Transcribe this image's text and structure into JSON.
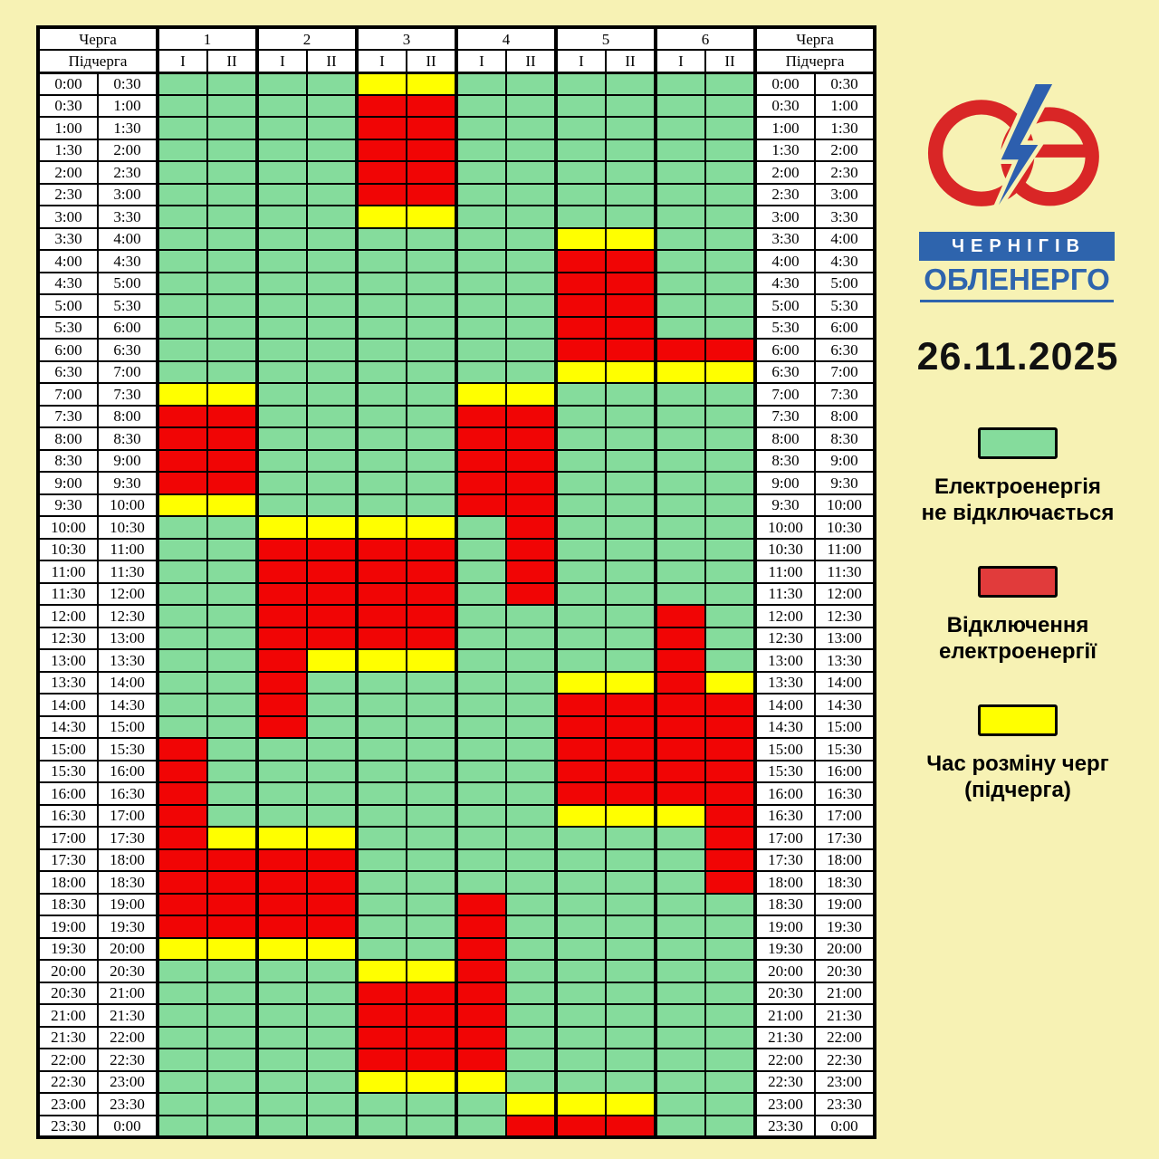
{
  "date": "26.11.2025",
  "logo": {
    "city": "ЧЕРНІГІВ",
    "company": "ОБЛЕНЕРГО",
    "ring_color": "#D92626",
    "bolt_color": "#2D5FAE"
  },
  "legend": [
    {
      "key": "G",
      "color": "#85DC9C",
      "lines": [
        "Електроенергія",
        "не відключається"
      ]
    },
    {
      "key": "R",
      "color": "#E13B3B",
      "lines": [
        "Відключення",
        "електроенергії"
      ]
    },
    {
      "key": "Y",
      "color": "#FFFF00",
      "lines": [
        "Час розміну черг",
        "(підчерга)"
      ]
    }
  ],
  "chart_data": {
    "type": "heatmap",
    "header": {
      "queue_label": "Черга",
      "subqueue_label": "Підчерга",
      "queues": [
        "1",
        "2",
        "3",
        "4",
        "5",
        "6"
      ],
      "subqueues": [
        "I",
        "II"
      ]
    },
    "cell_colors": {
      "G": "#85DC9C",
      "R": "#F10505",
      "Y": "#FFFF00"
    },
    "cell_meanings": {
      "G": "Електроенергія не відключається",
      "R": "Відключення електроенергії",
      "Y": "Час розміну черг (підчерга)"
    },
    "time_slots": [
      [
        "0:00",
        "0:30"
      ],
      [
        "0:30",
        "1:00"
      ],
      [
        "1:00",
        "1:30"
      ],
      [
        "1:30",
        "2:00"
      ],
      [
        "2:00",
        "2:30"
      ],
      [
        "2:30",
        "3:00"
      ],
      [
        "3:00",
        "3:30"
      ],
      [
        "3:30",
        "4:00"
      ],
      [
        "4:00",
        "4:30"
      ],
      [
        "4:30",
        "5:00"
      ],
      [
        "5:00",
        "5:30"
      ],
      [
        "5:30",
        "6:00"
      ],
      [
        "6:00",
        "6:30"
      ],
      [
        "6:30",
        "7:00"
      ],
      [
        "7:00",
        "7:30"
      ],
      [
        "7:30",
        "8:00"
      ],
      [
        "8:00",
        "8:30"
      ],
      [
        "8:30",
        "9:00"
      ],
      [
        "9:00",
        "9:30"
      ],
      [
        "9:30",
        "10:00"
      ],
      [
        "10:00",
        "10:30"
      ],
      [
        "10:30",
        "11:00"
      ],
      [
        "11:00",
        "11:30"
      ],
      [
        "11:30",
        "12:00"
      ],
      [
        "12:00",
        "12:30"
      ],
      [
        "12:30",
        "13:00"
      ],
      [
        "13:00",
        "13:30"
      ],
      [
        "13:30",
        "14:00"
      ],
      [
        "14:00",
        "14:30"
      ],
      [
        "14:30",
        "15:00"
      ],
      [
        "15:00",
        "15:30"
      ],
      [
        "15:30",
        "16:00"
      ],
      [
        "16:00",
        "16:30"
      ],
      [
        "16:30",
        "17:00"
      ],
      [
        "17:00",
        "17:30"
      ],
      [
        "17:30",
        "18:00"
      ],
      [
        "18:00",
        "18:30"
      ],
      [
        "18:30",
        "19:00"
      ],
      [
        "19:00",
        "19:30"
      ],
      [
        "19:30",
        "20:00"
      ],
      [
        "20:00",
        "20:30"
      ],
      [
        "20:30",
        "21:00"
      ],
      [
        "21:00",
        "21:30"
      ],
      [
        "21:30",
        "22:00"
      ],
      [
        "22:00",
        "22:30"
      ],
      [
        "22:30",
        "23:00"
      ],
      [
        "23:00",
        "23:30"
      ],
      [
        "23:30",
        "0:00"
      ]
    ],
    "rows": [
      "GGGGYYGGGGGG",
      "GGGGRRGGGGGG",
      "GGGGRRGGGGGG",
      "GGGGRRGGGGGG",
      "GGGGRRGGGGGG",
      "GGGGRRGGGGGG",
      "GGGGYYGGGGGG",
      "GGGGGGGGYYGG",
      "GGGGGGGGRRGG",
      "GGGGGGGGRRGG",
      "GGGGGGGGRRGG",
      "GGGGGGGGRRGG",
      "GGGGGGGGRRRR",
      "GGGGGGGGYYYY",
      "YYGGGGYYGGGG",
      "RRGGGGRRGGGG",
      "RRGGGGRRGGGG",
      "RRGGGGRRGGGG",
      "RRGGGGRRGGGG",
      "YYGGGGRRGGGG",
      "GGYYYYGRGGGG",
      "GGRRRRGRGGGG",
      "GGRRRRGRGGGG",
      "GGRRRRGRGGGG",
      "GGRRRRGGGGRG",
      "GGRRRRGGGGRG",
      "GGRYYYGGGGRG",
      "GGRGGGGGYYRY",
      "GGRGGGGGRRRR",
      "GGRGGGGGRRRR",
      "RGGGGGGGRRRR",
      "RGGGGGGGRRRR",
      "RGGGGGGGRRRR",
      "RGGGGGGGYYYR",
      "RYYYGGGGGGGR",
      "RRRRGGGGGGGR",
      "RRRRGGGGGGGR",
      "RRRRGGRGGGGG",
      "RRRRGGRGGGGG",
      "YYYYGGRGGGGG",
      "GGGGYYRGGGGG",
      "GGGGRRRGGGGG",
      "GGGGRRRGGGGG",
      "GGGGRRRGGGGG",
      "GGGGRRRGGGGG",
      "GGGGYYYGGGGG",
      "GGGGGGGYYYGG",
      "GGGGGGGRRRGG"
    ]
  }
}
